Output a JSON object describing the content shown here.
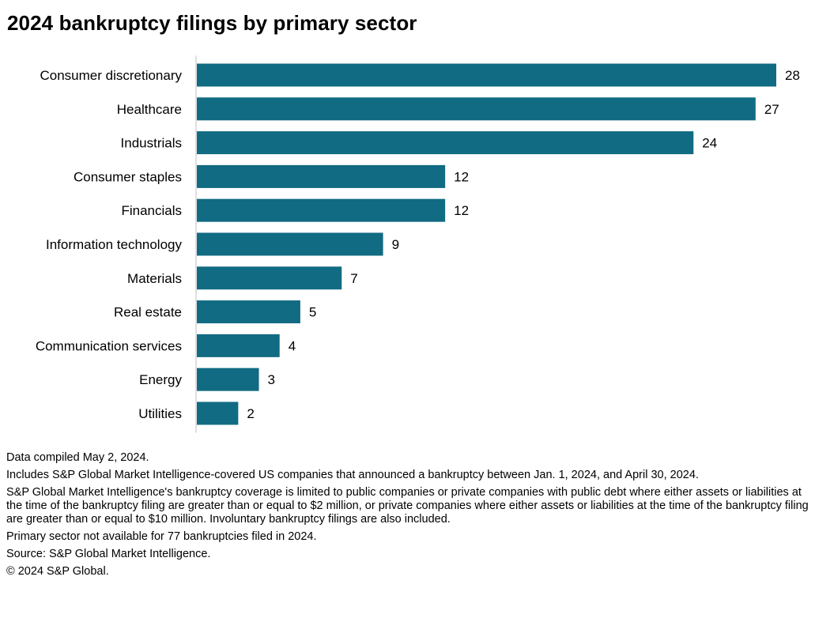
{
  "title": "2024 bankruptcy filings by primary sector",
  "colors": {
    "bar": "#116b82",
    "axis": "#bfbfbf",
    "text": "#000000"
  },
  "chart_data": {
    "type": "bar",
    "orientation": "horizontal",
    "title": "2024 bankruptcy filings by primary sector",
    "categories": [
      "Consumer discretionary",
      "Healthcare",
      "Industrials",
      "Consumer staples",
      "Financials",
      "Information technology",
      "Materials",
      "Real estate",
      "Communication services",
      "Energy",
      "Utilities"
    ],
    "values": [
      28,
      27,
      24,
      12,
      12,
      9,
      7,
      5,
      4,
      3,
      2
    ],
    "xlim": [
      0,
      28
    ],
    "grid": false,
    "data_labels": true
  },
  "notes": [
    "Data compiled May 2, 2024.",
    "Includes S&P Global Market Intelligence-covered US companies that announced a bankruptcy between Jan. 1, 2024, and April 30, 2024.",
    "S&P Global Market Intelligence's bankruptcy coverage is limited to public companies or private companies with public debt where either assets or liabilities at the time of the bankruptcy filing are greater than or equal to $2 million, or private companies where either assets or liabilities at the time of the bankruptcy filing are greater than or equal to $10 million. Involuntary bankruptcy filings are also included.",
    "Primary sector not available for 77 bankruptcies filed in 2024.",
    "Source: S&P Global Market Intelligence.",
    "© 2024 S&P Global."
  ]
}
